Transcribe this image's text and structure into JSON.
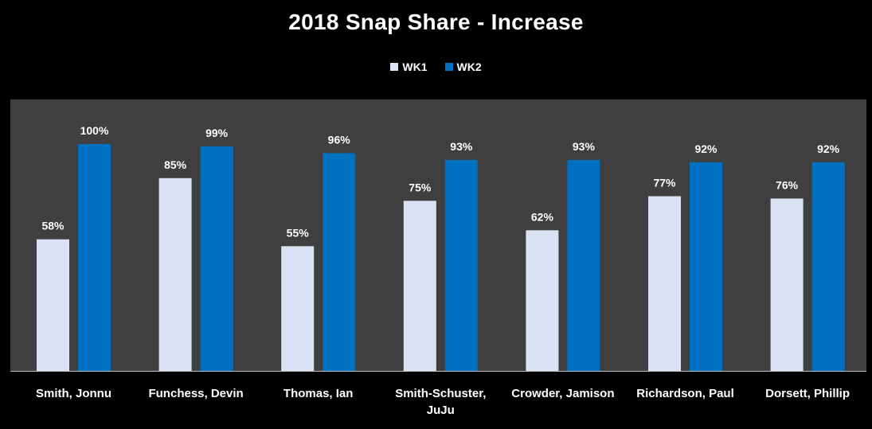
{
  "colors": {
    "background": "#000000",
    "plot_area": "#3f3f3f",
    "axis_line": "#bfbfbf",
    "text": "#ffffff",
    "wk1": "#dae3f3",
    "wk2": "#0070c0"
  },
  "chart_data": {
    "type": "bar",
    "title": "2018 Snap Share - Increase",
    "xlabel": "",
    "ylabel": "",
    "ylim": [
      0,
      120
    ],
    "grid": false,
    "legend_position": "top-center",
    "categories": [
      [
        "Smith, Jonnu"
      ],
      [
        "Funchess, Devin"
      ],
      [
        "Thomas, Ian"
      ],
      [
        "Smith-Schuster,",
        "JuJu"
      ],
      [
        "Crowder, Jamison"
      ],
      [
        "Richardson, Paul"
      ],
      [
        "Dorsett, Phillip"
      ]
    ],
    "series": [
      {
        "name": "WK1",
        "color": "#dae3f3",
        "values": [
          58,
          85,
          55,
          75,
          62,
          77,
          76
        ],
        "labels": [
          "58%",
          "85%",
          "55%",
          "75%",
          "62%",
          "77%",
          "76%"
        ]
      },
      {
        "name": "WK2",
        "color": "#0070c0",
        "values": [
          100,
          99,
          96,
          93,
          93,
          92,
          92
        ],
        "labels": [
          "100%",
          "99%",
          "96%",
          "93%",
          "93%",
          "92%",
          "92%"
        ]
      }
    ]
  }
}
